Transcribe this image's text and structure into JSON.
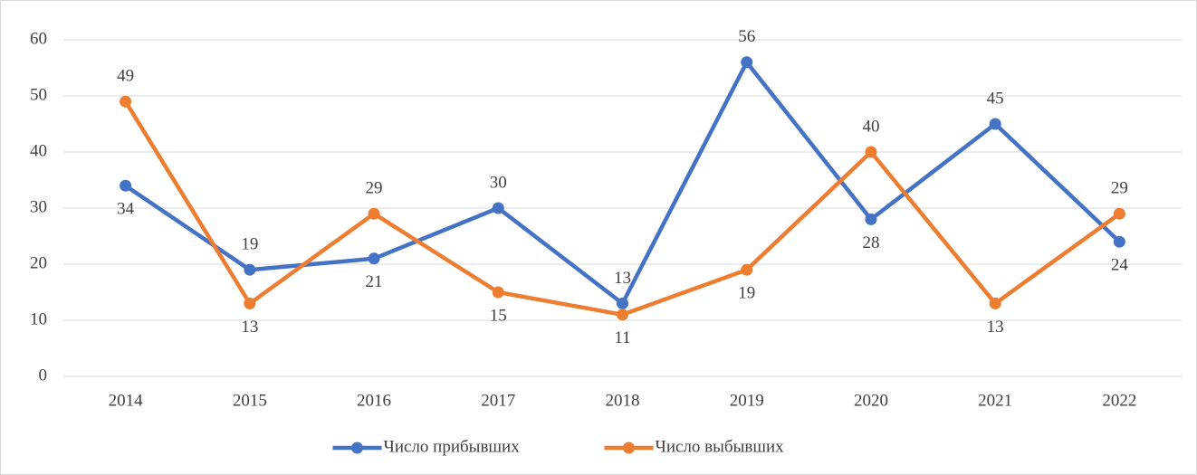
{
  "chart_data": {
    "type": "line",
    "categories": [
      "2014",
      "2015",
      "2016",
      "2017",
      "2018",
      "2019",
      "2020",
      "2021",
      "2022"
    ],
    "series": [
      {
        "name": "Число прибывших",
        "color": "#4472c4",
        "values": [
          34,
          19,
          21,
          30,
          13,
          56,
          28,
          45,
          24
        ]
      },
      {
        "name": "Число выбывших",
        "color": "#ed7d31",
        "values": [
          49,
          13,
          29,
          15,
          11,
          19,
          40,
          13,
          29
        ]
      }
    ],
    "ylim": [
      0,
      60
    ],
    "yticks": [
      0,
      10,
      20,
      30,
      40,
      50,
      60
    ],
    "grid": true,
    "legend": "bottom"
  }
}
